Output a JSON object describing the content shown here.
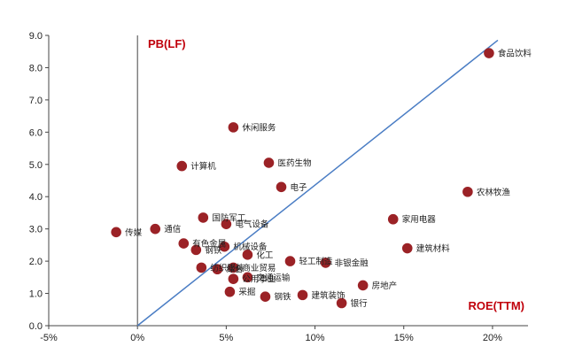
{
  "chart_data": {
    "type": "scatter",
    "title": "",
    "xlabel": "ROE(TTM)",
    "ylabel": "PB(LF)",
    "xlim": [
      -5,
      22
    ],
    "ylim": [
      0,
      9
    ],
    "x_ticks": [
      "-5%",
      "0%",
      "5%",
      "10%",
      "15%",
      "20%"
    ],
    "x_tick_values": [
      -5,
      0,
      5,
      10,
      15,
      20
    ],
    "y_ticks": [
      "0.0",
      "1.0",
      "2.0",
      "3.0",
      "4.0",
      "5.0",
      "6.0",
      "7.0",
      "8.0",
      "9.0"
    ],
    "y_tick_values": [
      0,
      1,
      2,
      3,
      4,
      5,
      6,
      7,
      8,
      9
    ],
    "grid": false,
    "trend_line": {
      "from": [
        0,
        0
      ],
      "to": [
        20.3,
        8.85
      ]
    },
    "colors": {
      "point": "#9b2226",
      "line": "#4a7dc4",
      "axis": "#444444",
      "corner_label": "#c0000b"
    },
    "points": [
      {
        "name": "食品饮料",
        "x": 19.8,
        "y": 8.45
      },
      {
        "name": "休闲服务",
        "x": 5.4,
        "y": 6.15
      },
      {
        "name": "计算机",
        "x": 2.5,
        "y": 4.95
      },
      {
        "name": "医药生物",
        "x": 7.4,
        "y": 5.05
      },
      {
        "name": "电子",
        "x": 8.1,
        "y": 4.3
      },
      {
        "name": "农林牧渔",
        "x": 18.6,
        "y": 4.15
      },
      {
        "name": "国防军工",
        "x": 3.7,
        "y": 3.35
      },
      {
        "name": "家用电器",
        "x": 14.4,
        "y": 3.3
      },
      {
        "name": "电气设备",
        "x": 5.0,
        "y": 3.15
      },
      {
        "name": "通信",
        "x": 1.0,
        "y": 3.0
      },
      {
        "name": "传媒",
        "x": -1.2,
        "y": 2.9
      },
      {
        "name": "建筑材料",
        "x": 15.2,
        "y": 2.4
      },
      {
        "name": "有色金属",
        "x": 2.6,
        "y": 2.55
      },
      {
        "name": "机械设备",
        "x": 4.9,
        "y": 2.45
      },
      {
        "name": "钢铁",
        "x": 3.3,
        "y": 2.35
      },
      {
        "name": "化工",
        "x": 6.2,
        "y": 2.2
      },
      {
        "name": "轻工制造",
        "x": 8.6,
        "y": 2.0
      },
      {
        "name": "非银金融",
        "x": 10.6,
        "y": 1.95
      },
      {
        "name": "纺织服装",
        "x": 3.6,
        "y": 1.8
      },
      {
        "name": "商业贸易",
        "x": 5.4,
        "y": 1.8
      },
      {
        "name": "综合",
        "x": 4.5,
        "y": 1.75
      },
      {
        "name": "交通运输",
        "x": 6.2,
        "y": 1.5
      },
      {
        "name": "公用事业",
        "x": 5.4,
        "y": 1.45
      },
      {
        "name": "房地产",
        "x": 12.7,
        "y": 1.25
      },
      {
        "name": "采掘",
        "x": 5.2,
        "y": 1.05
      },
      {
        "name": "钢铁",
        "x": 7.2,
        "y": 0.9
      },
      {
        "name": "建筑装饰",
        "x": 9.3,
        "y": 0.95
      },
      {
        "name": "银行",
        "x": 11.5,
        "y": 0.7
      }
    ]
  }
}
